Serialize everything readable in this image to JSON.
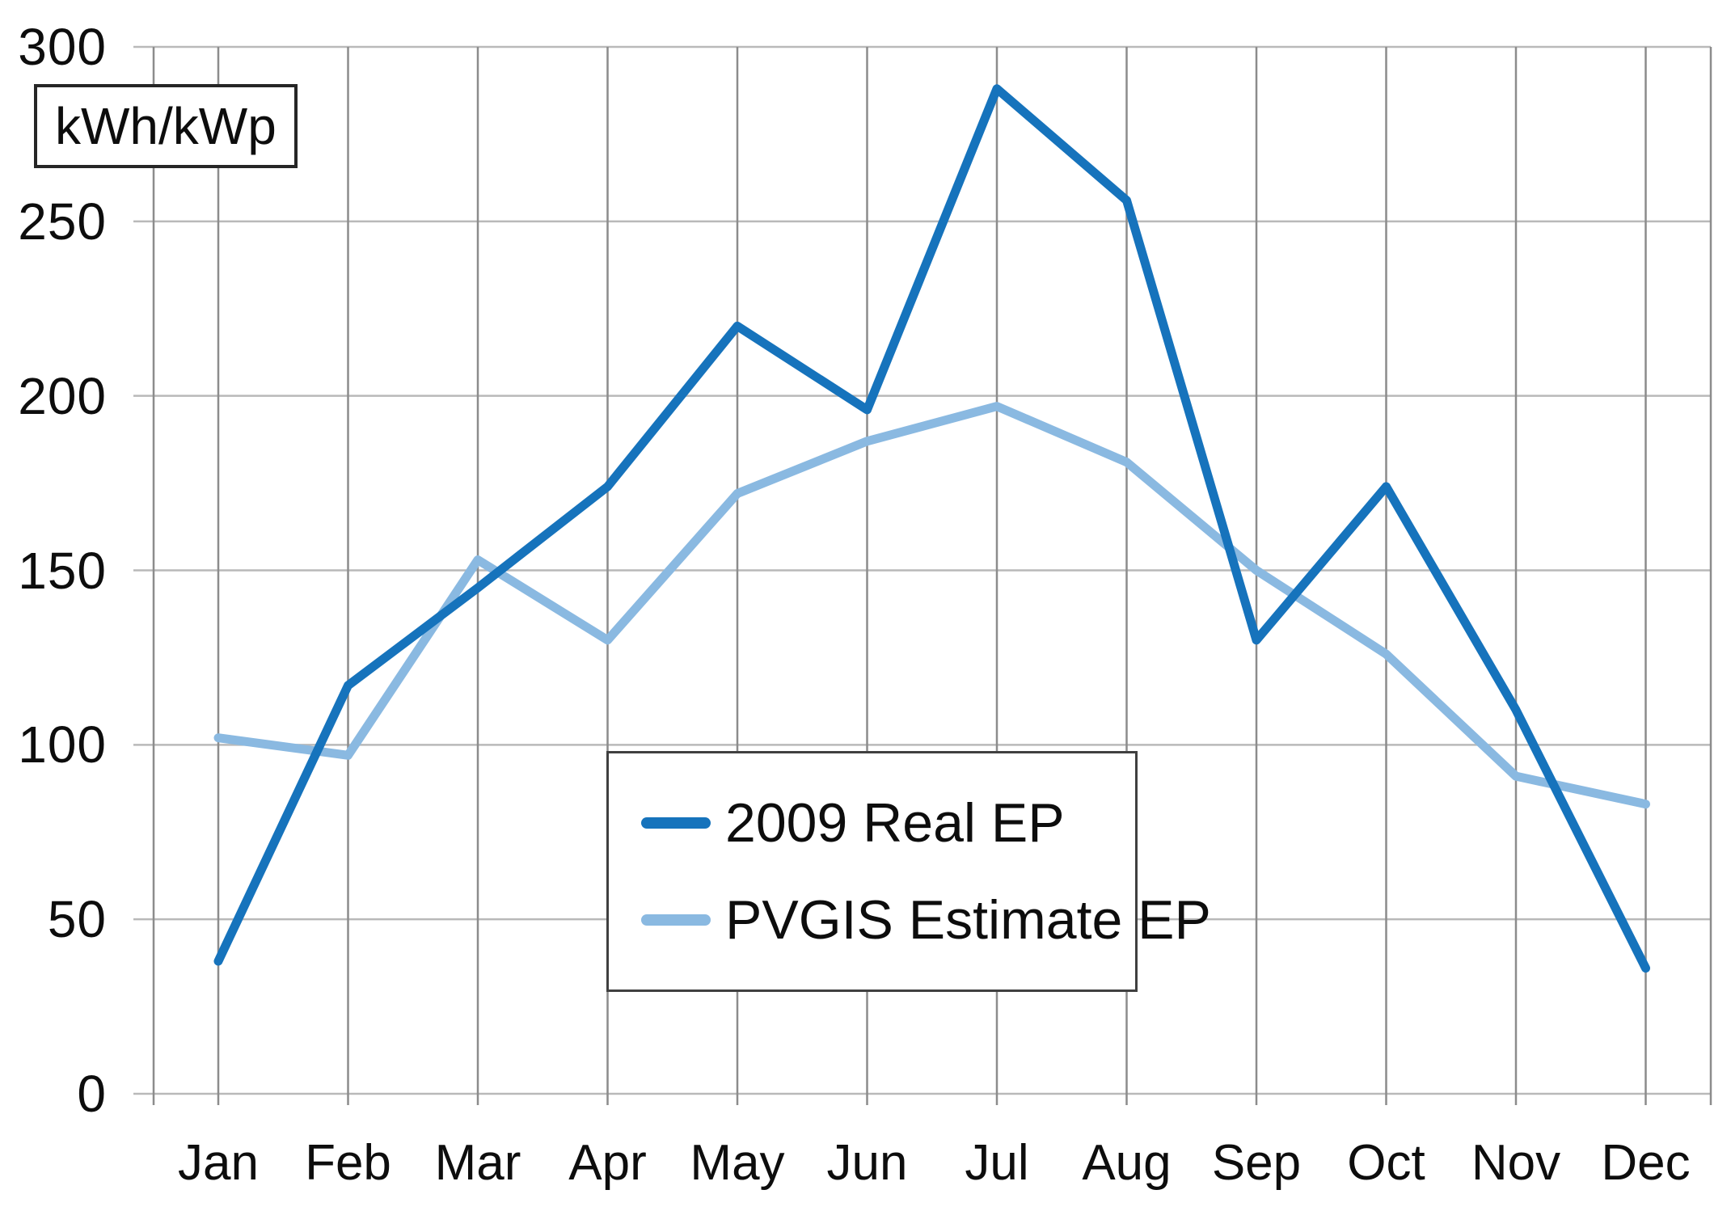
{
  "page": {
    "background": "#ffffff"
  },
  "chart_data": {
    "type": "line",
    "title": "",
    "unit_label": "kWh/kWp",
    "xlabel": "",
    "ylabel": "kWh/kWp",
    "categories": [
      "Jan",
      "Feb",
      "Mar",
      "Apr",
      "May",
      "Jun",
      "Jul",
      "Aug",
      "Sep",
      "Oct",
      "Nov",
      "Dec"
    ],
    "series": [
      {
        "name": "2009 Real EP",
        "color": "#1673bc",
        "values": [
          38,
          117,
          145,
          174,
          220,
          196,
          288,
          256,
          130,
          174,
          110,
          36
        ]
      },
      {
        "name": "PVGIS Estimate EP",
        "color": "#8ab9e1",
        "values": [
          102,
          97,
          153,
          130,
          172,
          187,
          197,
          181,
          150,
          126,
          91,
          83
        ]
      }
    ],
    "ylim": [
      0,
      300
    ],
    "yticks": [
      0,
      50,
      100,
      150,
      200,
      250,
      300
    ],
    "grid": "both",
    "legend_position": "inside-center",
    "styles": {
      "line_width": 11,
      "vgrid_color": "#8c8c8c",
      "hgrid_color": "#b9b9b9",
      "text_color": "#0d0d0d"
    }
  }
}
